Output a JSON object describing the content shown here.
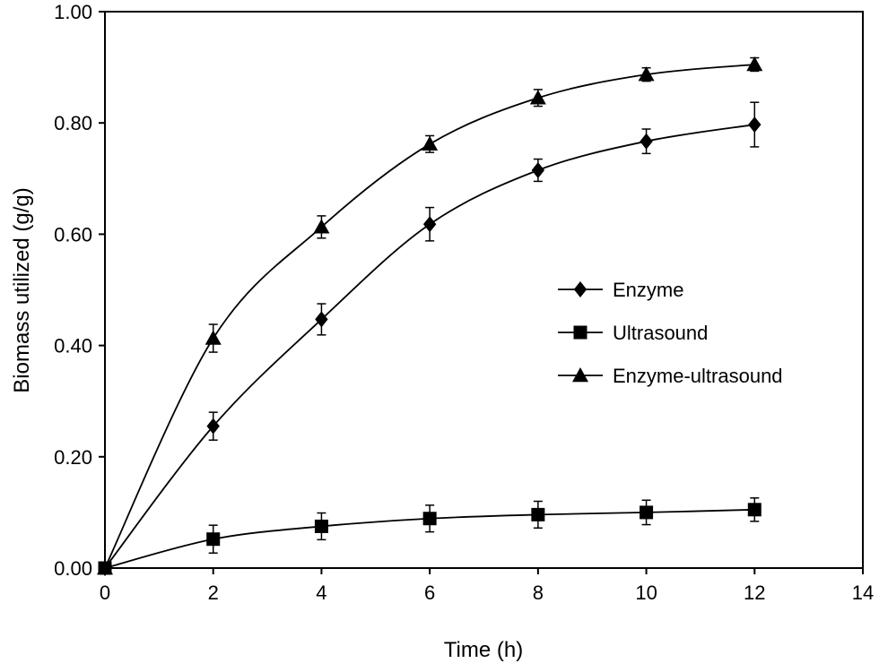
{
  "chart_data": {
    "type": "line",
    "title": "",
    "xlabel": "Time (h)",
    "ylabel": "Biomass utilized  (g/g)",
    "xlim": [
      0,
      14
    ],
    "ylim": [
      0,
      1.0
    ],
    "x_ticks": [
      0,
      2,
      4,
      6,
      8,
      10,
      12,
      14
    ],
    "x_tick_labels": [
      "0",
      "2",
      "4",
      "6",
      "8",
      "10",
      "12",
      "14"
    ],
    "y_ticks": [
      0,
      0.2,
      0.4,
      0.6,
      0.8,
      1.0
    ],
    "y_tick_labels": [
      "0.00",
      "0.20",
      "0.40",
      "0.60",
      "0.80",
      "1.00"
    ],
    "grid": false,
    "legend_position": "right",
    "x": [
      0,
      2,
      4,
      6,
      8,
      10,
      12
    ],
    "series": [
      {
        "name": "Enzyme",
        "marker": "diamond",
        "values": [
          0.0,
          0.255,
          0.447,
          0.618,
          0.715,
          0.767,
          0.797
        ],
        "errors": [
          0.0,
          0.025,
          0.028,
          0.03,
          0.02,
          0.022,
          0.04
        ]
      },
      {
        "name": "Ultrasound",
        "marker": "square",
        "values": [
          0.0,
          0.052,
          0.075,
          0.089,
          0.096,
          0.1,
          0.105
        ],
        "errors": [
          0.0,
          0.025,
          0.024,
          0.024,
          0.024,
          0.022,
          0.021
        ]
      },
      {
        "name": "Enzyme-ultrasound",
        "marker": "triangle",
        "values": [
          0.0,
          0.413,
          0.613,
          0.762,
          0.845,
          0.887,
          0.905
        ],
        "errors": [
          0.0,
          0.025,
          0.02,
          0.015,
          0.015,
          0.012,
          0.012
        ]
      }
    ]
  }
}
